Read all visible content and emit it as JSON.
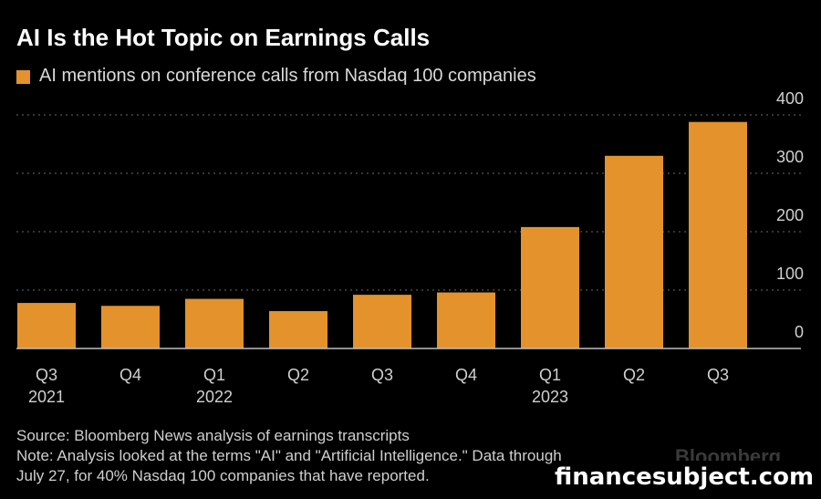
{
  "title": "AI Is the Hot Topic on Earnings Calls",
  "legend_label": "AI mentions on conference calls from Nasdaq 100 companies",
  "source": "Source: Bloomberg News analysis of earnings transcripts",
  "note_line1": "Note: Analysis looked at the terms \"AI\" and \"Artificial Intelligence.\" Data through",
  "note_line2": "July 27, for 40% Nasdaq 100 companies that have reported.",
  "logo": "Bloomberg",
  "watermark": "financesubject.com",
  "colors": {
    "bar": "#e3922c",
    "background": "#000000",
    "grid": "#555555"
  },
  "chart_data": {
    "type": "bar",
    "title": "AI Is the Hot Topic on Earnings Calls",
    "categories": [
      "Q3",
      "Q4",
      "Q1",
      "Q2",
      "Q3",
      "Q4",
      "Q1",
      "Q2",
      "Q3"
    ],
    "year_labels": [
      "2021",
      "",
      "2022",
      "",
      "",
      "",
      "2023",
      "",
      ""
    ],
    "series": [
      {
        "name": "AI mentions on conference calls from Nasdaq 100 companies",
        "values": [
          78,
          73,
          85,
          64,
          92,
          96,
          208,
          330,
          388
        ]
      }
    ],
    "yticks": [
      "0",
      "100",
      "200",
      "300",
      "400"
    ],
    "ylim": [
      0,
      430
    ],
    "y_axis_side": "right",
    "grid": true,
    "legend_position": "top-left"
  }
}
